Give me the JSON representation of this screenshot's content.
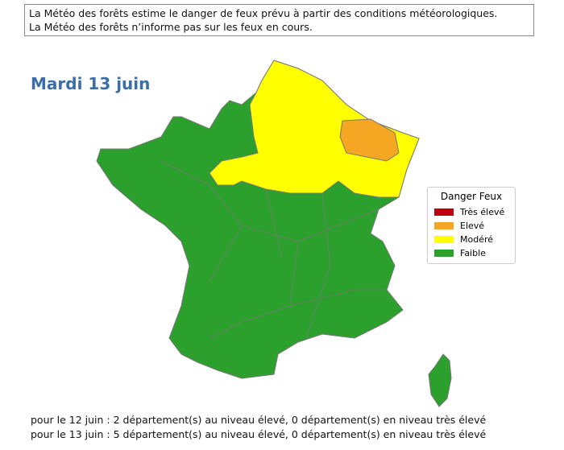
{
  "notice": [
    "La Météo des forêts estime le danger de feux prévu à partir des conditions météorologiques.",
    "La Météo des forêts n’informe pas sur les feux en cours."
  ],
  "title": "Mardi 13 juin",
  "legend": {
    "title": "Danger Feux",
    "items": [
      {
        "label": "Très élevé",
        "color": "#c0000f"
      },
      {
        "label": "Elevé",
        "color": "#f5a623"
      },
      {
        "label": "Modéré",
        "color": "#ffff00"
      },
      {
        "label": "Faible",
        "color": "#2ca02c"
      }
    ]
  },
  "footer": [
    "pour le 12 juin : 2 département(s) au niveau élevé, 0 département(s) en niveau très élevé",
    "pour le 13 juin : 5 département(s) au niveau élevé, 0 département(s) en niveau très élevé"
  ]
}
